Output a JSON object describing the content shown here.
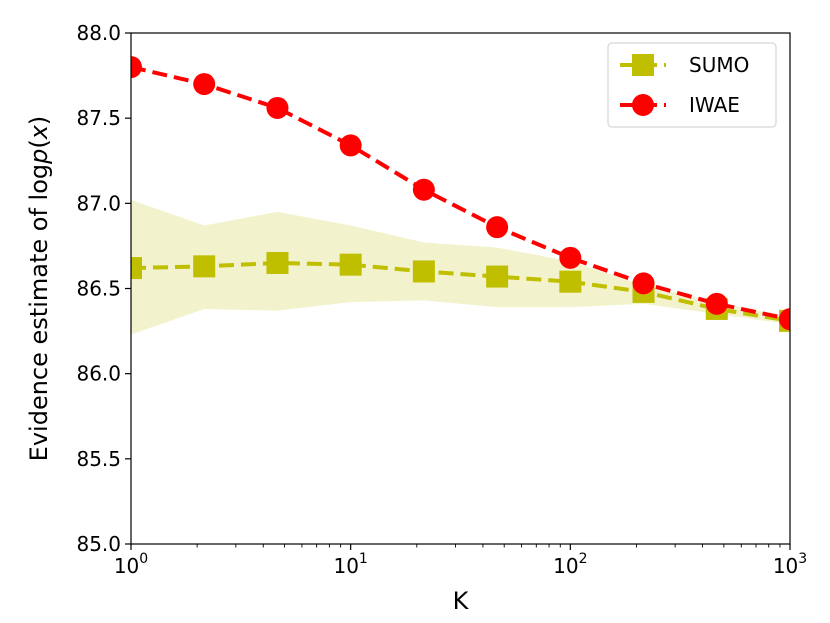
{
  "chart_data": {
    "type": "line",
    "x_scale": "log",
    "x": [
      1,
      2.154,
      4.642,
      10,
      21.54,
      46.42,
      100,
      215.4,
      464.2,
      1000
    ],
    "xlim": [
      1,
      1000
    ],
    "ylim": [
      85.0,
      88.0
    ],
    "xlabel": "K",
    "ylabel": {
      "prefix": "Evidence estimate of ",
      "log": "log",
      "p": "p",
      "open": "(",
      "var": "x",
      "close": ")"
    },
    "x_ticks": [
      {
        "base": "10",
        "exp": "0"
      },
      {
        "base": "10",
        "exp": "1"
      },
      {
        "base": "10",
        "exp": "2"
      },
      {
        "base": "10",
        "exp": "3"
      }
    ],
    "y_ticks": [
      "85.0",
      "85.5",
      "86.0",
      "86.5",
      "87.0",
      "87.5",
      "88.0"
    ],
    "legend_position": "top-right",
    "series": [
      {
        "name": "SUMO",
        "color": "#bfbf00",
        "band_color": "#bfbf00",
        "marker": "square",
        "linestyle": "dashed",
        "values": [
          86.62,
          86.63,
          86.65,
          86.64,
          86.6,
          86.57,
          86.54,
          86.48,
          86.38,
          86.31
        ],
        "band_lower": [
          86.23,
          86.38,
          86.37,
          86.42,
          86.43,
          86.39,
          86.39,
          86.41,
          86.35,
          86.29
        ],
        "band_upper": [
          87.02,
          86.87,
          86.95,
          86.87,
          86.77,
          86.74,
          86.66,
          86.52,
          86.42,
          86.33
        ]
      },
      {
        "name": "IWAE",
        "color": "#ff0000",
        "marker": "circle",
        "linestyle": "dashed",
        "values": [
          87.8,
          87.7,
          87.56,
          87.34,
          87.08,
          86.86,
          86.68,
          86.53,
          86.41,
          86.32
        ]
      }
    ]
  }
}
